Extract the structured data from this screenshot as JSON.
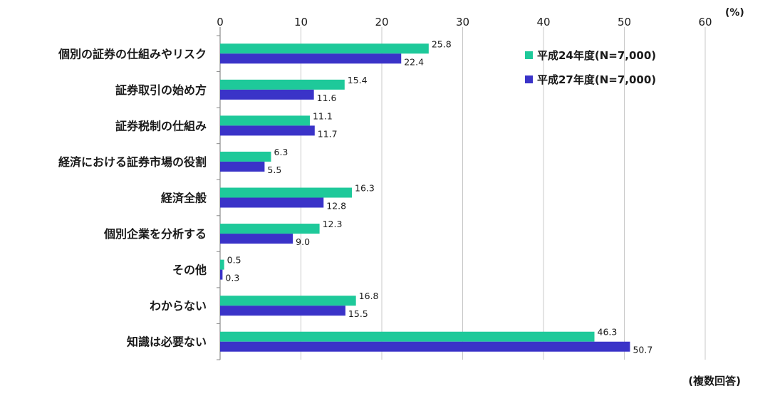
{
  "chart_data": {
    "type": "bar",
    "orientation": "horizontal",
    "categories": [
      "個別の証券の仕組みやリスク",
      "証券取引の始め方",
      "証券税制の仕組み",
      "経済における証券市場の役割",
      "経済全般",
      "個別企業を分析する",
      "その他",
      "わからない",
      "知識は必要ない"
    ],
    "series": [
      {
        "name": "平成24年度(N=7,000)",
        "color": "#1ec99a",
        "values": [
          25.8,
          15.4,
          11.1,
          6.3,
          16.3,
          12.3,
          0.5,
          16.8,
          46.3
        ],
        "value_labels": [
          "25.8",
          "15.4",
          "11.1",
          "6.3",
          "16.3",
          "12.3",
          "0.5",
          "16.8",
          "46.3"
        ]
      },
      {
        "name": "平成27年度(N=7,000)",
        "color": "#3a33c8",
        "values": [
          22.4,
          11.6,
          11.7,
          5.5,
          12.8,
          9.0,
          0.3,
          15.5,
          50.7
        ],
        "value_labels": [
          "22.4",
          "11.6",
          "11.7",
          "5.5",
          "12.8",
          "9.0",
          "0.3",
          "15.5",
          "50.7"
        ]
      }
    ],
    "xlim": [
      0,
      60
    ],
    "x_ticks": [
      "0",
      "10",
      "20",
      "30",
      "40",
      "50",
      "60"
    ],
    "unit": "(%)",
    "note": "(複数回答)",
    "grid": true,
    "legend_position": "top-right"
  }
}
